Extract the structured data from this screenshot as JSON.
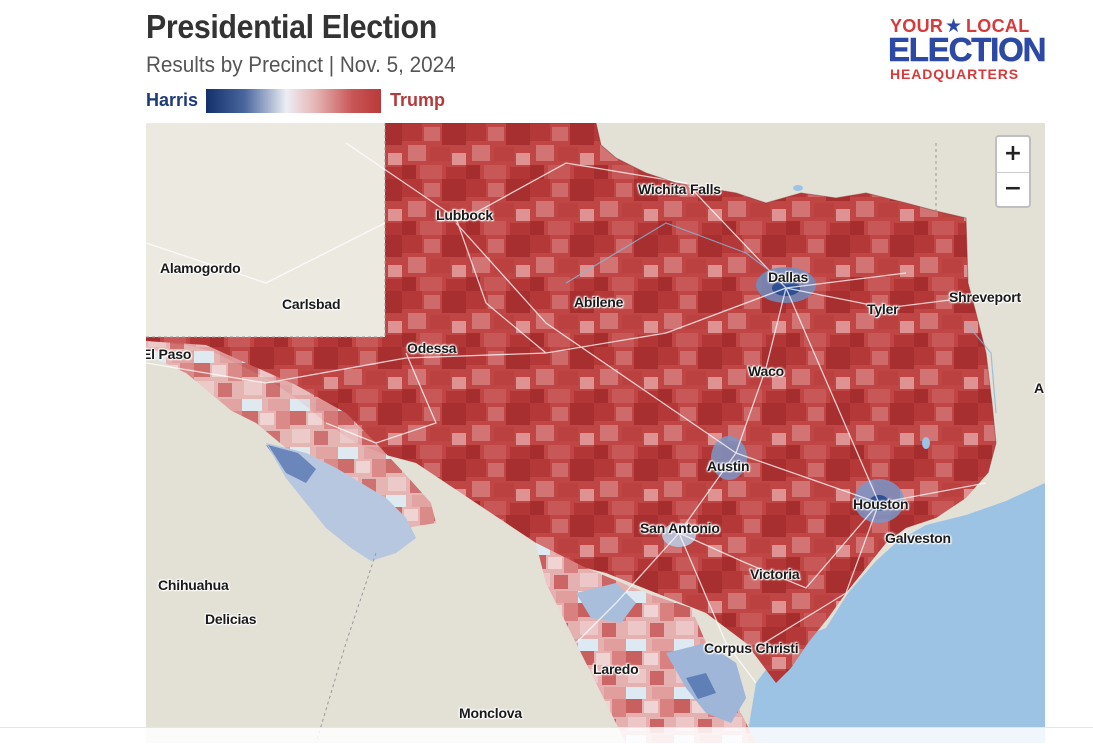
{
  "header": {
    "title": "Presidential Election",
    "subtitle": "Results by Precinct | Nov. 5, 2024"
  },
  "legend": {
    "left_label": "Harris",
    "right_label": "Trump",
    "left_color": "#14306b",
    "right_color": "#b93a3a"
  },
  "logo": {
    "line1a": "YOUR",
    "line1b": "LOCAL",
    "line2": "ELECTION",
    "line3": "HEADQUARTERS"
  },
  "map": {
    "zoom_in_label": "+",
    "zoom_out_label": "−",
    "colors": {
      "land": "#e3e0d6",
      "water": "#9cc3e3",
      "trump_strong": "#b93a3a",
      "trump_lean": "#e3a9a9",
      "harris_lean": "#b8c8e0",
      "harris_strong": "#3a5ca0"
    },
    "cities": [
      {
        "name": "Wichita Falls"
      },
      {
        "name": "Lubbock"
      },
      {
        "name": "Alamogordo"
      },
      {
        "name": "Carlsbad"
      },
      {
        "name": "Dallas"
      },
      {
        "name": "Abilene"
      },
      {
        "name": "Shreveport"
      },
      {
        "name": "Tyler"
      },
      {
        "name": "El Paso"
      },
      {
        "name": "Odessa"
      },
      {
        "name": "Waco"
      },
      {
        "name": "A"
      },
      {
        "name": "Austin"
      },
      {
        "name": "Houston"
      },
      {
        "name": "San Antonio"
      },
      {
        "name": "Galveston"
      },
      {
        "name": "Chihuahua"
      },
      {
        "name": "Victoria"
      },
      {
        "name": "Delicias"
      },
      {
        "name": "Corpus Christi"
      },
      {
        "name": "Laredo"
      },
      {
        "name": "Monclova"
      }
    ]
  }
}
